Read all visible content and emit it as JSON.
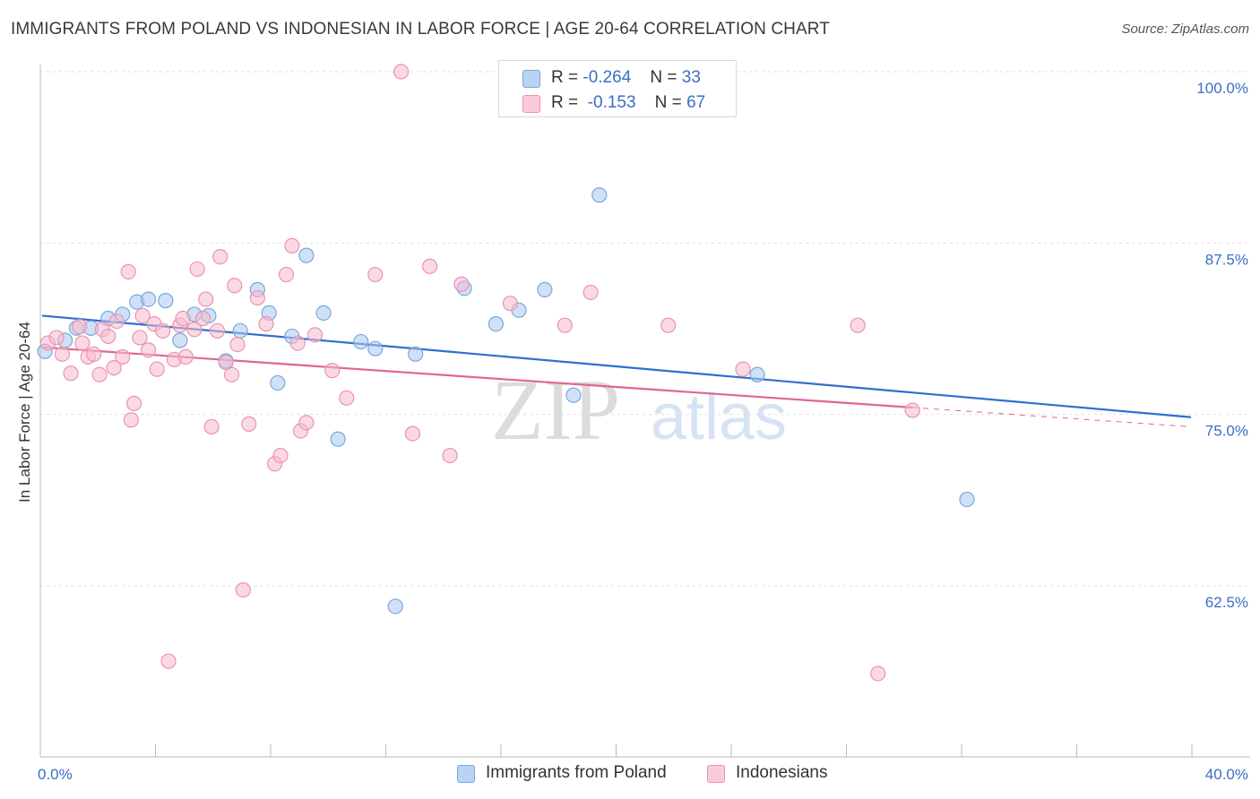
{
  "header": {
    "title": "IMMIGRANTS FROM POLAND VS INDONESIAN IN LABOR FORCE | AGE 20-64 CORRELATION CHART",
    "source": "Source: ZipAtlas.com"
  },
  "legend": {
    "items": [
      {
        "r_label": "R =",
        "r_value": "-0.264",
        "n_label": "N =",
        "n_value": "33"
      },
      {
        "r_label": "R =",
        "r_value": "-0.153",
        "n_label": "N =",
        "n_value": "67"
      }
    ]
  },
  "bottom_legend": {
    "items": [
      {
        "label": "Immigrants from Poland"
      },
      {
        "label": "Indonesians"
      }
    ]
  },
  "watermark": {
    "zip": "ZIP",
    "atlas": "atlas"
  },
  "colors": {
    "blue_fill": "#a9c8f0",
    "blue_stroke": "#7aa6dd",
    "blue_line": "#2f6fcf",
    "pink_fill": "#f7b9cd",
    "pink_stroke": "#e894b0",
    "pink_line": "#e06690",
    "axis_text": "#3a6fc4",
    "grid": "#dddddd"
  },
  "chart_data": {
    "type": "scatter",
    "title": "IMMIGRANTS FROM POLAND VS INDONESIAN IN LABOR FORCE | AGE 20-64 CORRELATION CHART",
    "xlabel": "",
    "ylabel": "In Labor Force | Age 20-64",
    "xlim": [
      0,
      40
    ],
    "ylim": [
      52.5,
      101.5
    ],
    "x_tick_labels": [
      "0.0%",
      "40.0%"
    ],
    "y_ticks": [
      62.5,
      75.0,
      87.5,
      100.0
    ],
    "y_tick_labels": [
      "62.5%",
      "75.0%",
      "87.5%",
      "100.0%"
    ],
    "grid": true,
    "series": [
      {
        "name": "Immigrants from Poland",
        "color": "#a9c8f0",
        "trend": {
          "x": [
            0,
            40
          ],
          "y": [
            82.2,
            74.8
          ],
          "dashed_from": null
        },
        "points": [
          [
            0.1,
            79.6
          ],
          [
            0.8,
            80.4
          ],
          [
            1.2,
            81.3
          ],
          [
            1.7,
            81.3
          ],
          [
            2.3,
            82.0
          ],
          [
            2.8,
            82.3
          ],
          [
            3.3,
            83.2
          ],
          [
            3.7,
            83.4
          ],
          [
            4.3,
            83.3
          ],
          [
            4.8,
            80.4
          ],
          [
            5.3,
            82.3
          ],
          [
            5.8,
            82.2
          ],
          [
            6.4,
            78.9
          ],
          [
            6.9,
            81.1
          ],
          [
            7.5,
            84.1
          ],
          [
            7.9,
            82.4
          ],
          [
            8.2,
            77.3
          ],
          [
            8.7,
            80.7
          ],
          [
            9.2,
            86.6
          ],
          [
            9.8,
            82.4
          ],
          [
            10.3,
            73.2
          ],
          [
            11.1,
            80.3
          ],
          [
            11.6,
            79.8
          ],
          [
            12.3,
            61.0
          ],
          [
            13.0,
            79.4
          ],
          [
            14.7,
            84.2
          ],
          [
            15.8,
            81.6
          ],
          [
            16.6,
            82.6
          ],
          [
            17.5,
            84.1
          ],
          [
            18.5,
            76.4
          ],
          [
            19.4,
            91.0
          ],
          [
            24.9,
            77.9
          ],
          [
            32.2,
            68.8
          ]
        ]
      },
      {
        "name": "Indonesians",
        "color": "#f7b9cd",
        "trend": {
          "x": [
            0,
            40
          ],
          "y": [
            79.9,
            74.1
          ],
          "dashed_from": 30.3
        },
        "points": [
          [
            0.2,
            80.2
          ],
          [
            0.5,
            80.6
          ],
          [
            0.7,
            79.4
          ],
          [
            1.0,
            78.0
          ],
          [
            1.3,
            81.4
          ],
          [
            1.4,
            80.2
          ],
          [
            1.6,
            79.2
          ],
          [
            1.8,
            79.4
          ],
          [
            2.0,
            77.9
          ],
          [
            2.1,
            81.2
          ],
          [
            2.3,
            80.7
          ],
          [
            2.5,
            78.4
          ],
          [
            2.6,
            81.8
          ],
          [
            2.8,
            79.2
          ],
          [
            3.0,
            85.4
          ],
          [
            3.1,
            74.6
          ],
          [
            3.2,
            75.8
          ],
          [
            3.4,
            80.6
          ],
          [
            3.5,
            82.2
          ],
          [
            3.7,
            79.7
          ],
          [
            3.9,
            81.6
          ],
          [
            4.0,
            78.3
          ],
          [
            4.2,
            81.1
          ],
          [
            4.4,
            57.0
          ],
          [
            4.6,
            79.0
          ],
          [
            4.8,
            81.5
          ],
          [
            4.9,
            82.0
          ],
          [
            5.0,
            79.2
          ],
          [
            5.3,
            81.2
          ],
          [
            5.4,
            85.6
          ],
          [
            5.6,
            82.0
          ],
          [
            5.7,
            83.4
          ],
          [
            5.9,
            74.1
          ],
          [
            6.1,
            81.1
          ],
          [
            6.2,
            86.5
          ],
          [
            6.4,
            78.8
          ],
          [
            6.6,
            77.9
          ],
          [
            6.7,
            84.4
          ],
          [
            6.8,
            80.1
          ],
          [
            7.0,
            62.2
          ],
          [
            7.2,
            74.3
          ],
          [
            7.5,
            83.5
          ],
          [
            7.8,
            81.6
          ],
          [
            8.1,
            71.4
          ],
          [
            8.3,
            72.0
          ],
          [
            8.5,
            85.2
          ],
          [
            8.7,
            87.3
          ],
          [
            8.9,
            80.2
          ],
          [
            9.0,
            73.8
          ],
          [
            9.2,
            74.4
          ],
          [
            9.5,
            80.8
          ],
          [
            10.1,
            78.2
          ],
          [
            10.6,
            76.2
          ],
          [
            11.6,
            85.2
          ],
          [
            12.5,
            100.0
          ],
          [
            12.9,
            73.6
          ],
          [
            13.5,
            85.8
          ],
          [
            14.2,
            72.0
          ],
          [
            14.6,
            84.5
          ],
          [
            16.3,
            83.1
          ],
          [
            18.2,
            81.5
          ],
          [
            19.1,
            83.9
          ],
          [
            21.8,
            81.5
          ],
          [
            24.4,
            78.3
          ],
          [
            28.4,
            81.5
          ],
          [
            29.1,
            56.1
          ],
          [
            30.3,
            75.3
          ]
        ]
      }
    ]
  }
}
